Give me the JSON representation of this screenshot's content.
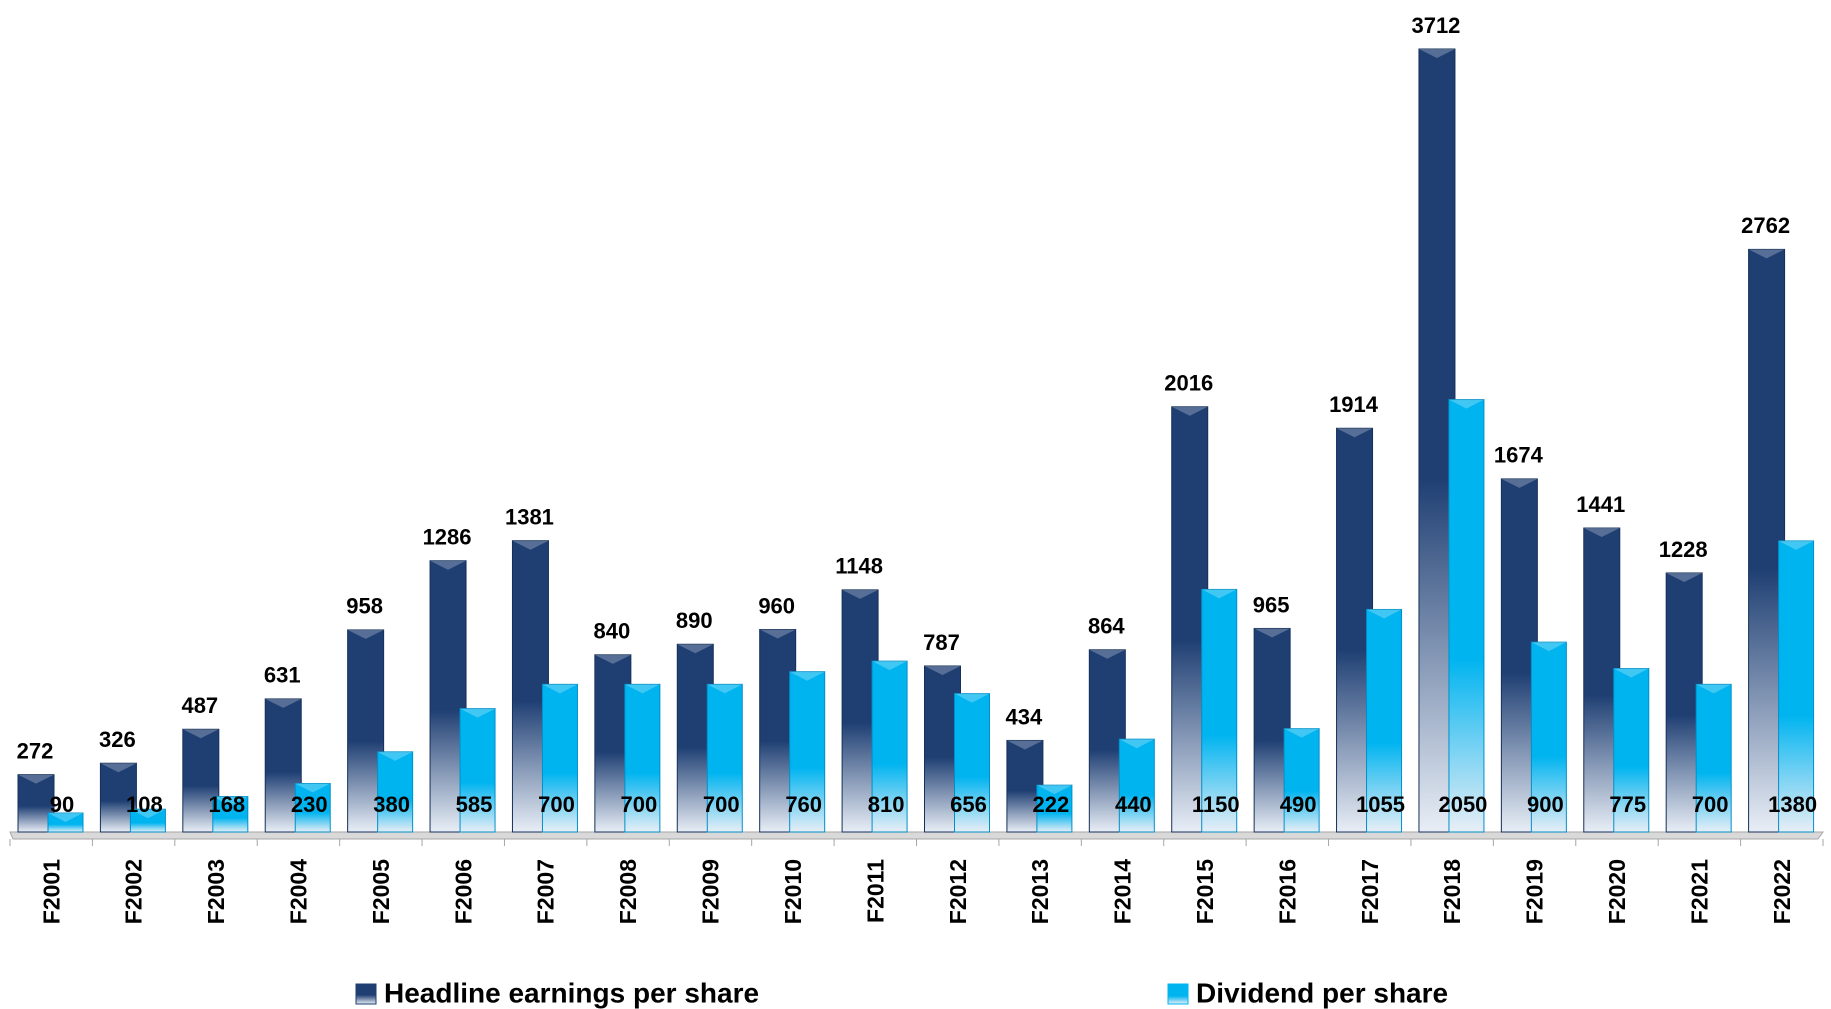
{
  "chart_data": {
    "type": "bar",
    "categories": [
      "F2001",
      "F2002",
      "F2003",
      "F2004",
      "F2005",
      "F2006",
      "F2007",
      "F2008",
      "F2009",
      "F2010",
      "F2011",
      "F2012",
      "F2013",
      "F2014",
      "F2015",
      "F2016",
      "F2017",
      "F2018",
      "F2019",
      "F2020",
      "F2021",
      "F2022"
    ],
    "series": [
      {
        "name": "Headline earnings per share",
        "color": "#1f3f73",
        "values": [
          272,
          326,
          487,
          631,
          958,
          1286,
          1381,
          840,
          890,
          960,
          1148,
          787,
          434,
          864,
          2016,
          965,
          1914,
          3712,
          1674,
          1441,
          1228,
          2762
        ]
      },
      {
        "name": "Dividend per share",
        "color": "#00b4f0",
        "values": [
          90,
          108,
          168,
          230,
          380,
          585,
          700,
          700,
          700,
          760,
          810,
          656,
          222,
          440,
          1150,
          490,
          1055,
          2050,
          900,
          775,
          700,
          1380
        ]
      }
    ],
    "legend": "bottom"
  }
}
